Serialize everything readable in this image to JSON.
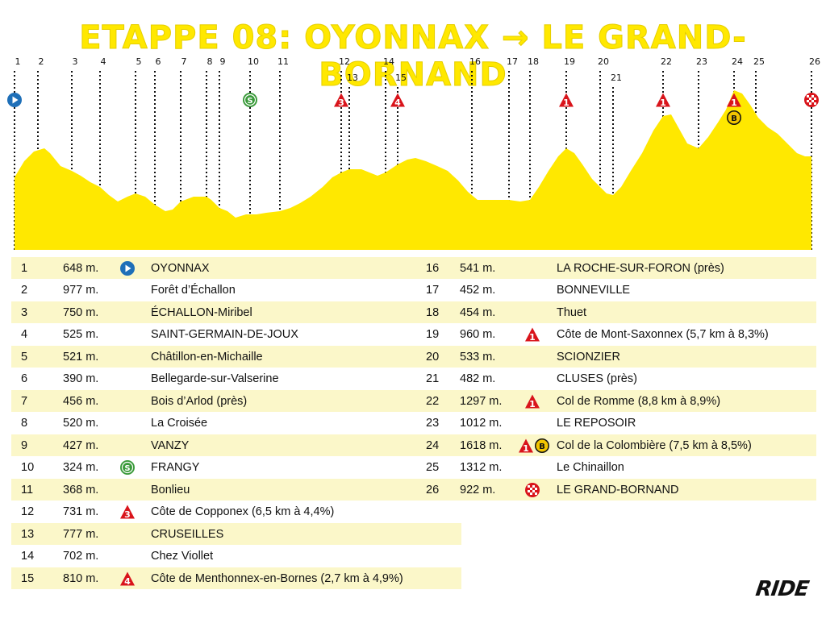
{
  "title": "ETAPPE 08: OYONNAX → LE GRAND-BORNAND",
  "logo": "RIDE",
  "colors": {
    "profile_fill": "#ffe800",
    "title": "#ffe800",
    "row_shade": "#fbf7c9",
    "start": "#1e6fb8",
    "sprint": "#3a9a3a",
    "climb": "#d9141b",
    "bonus": "#f2c500"
  },
  "waypoints": [
    {
      "num": "1",
      "alt": "648 m.",
      "icon": "start-icon",
      "name": "OYONNAX"
    },
    {
      "num": "2",
      "alt": "977 m.",
      "icon": "",
      "name": "Forêt d’Échallon"
    },
    {
      "num": "3",
      "alt": "750 m.",
      "icon": "",
      "name": "ÉCHALLON-Miribel"
    },
    {
      "num": "4",
      "alt": "525 m.",
      "icon": "",
      "name": "SAINT-GERMAIN-DE-JOUX"
    },
    {
      "num": "5",
      "alt": "521 m.",
      "icon": "",
      "name": "Châtillon-en-Michaille"
    },
    {
      "num": "6",
      "alt": "390 m.",
      "icon": "",
      "name": "Bellegarde-sur-Valserine"
    },
    {
      "num": "7",
      "alt": "456 m.",
      "icon": "",
      "name": "Bois d’Arlod (près)"
    },
    {
      "num": "8",
      "alt": "520 m.",
      "icon": "",
      "name": "La Croisée"
    },
    {
      "num": "9",
      "alt": "427 m.",
      "icon": "",
      "name": "VANZY"
    },
    {
      "num": "10",
      "alt": "324 m.",
      "icon": "sprint-icon",
      "name": "FRANGY"
    },
    {
      "num": "11",
      "alt": "368 m.",
      "icon": "",
      "name": "Bonlieu"
    },
    {
      "num": "12",
      "alt": "731 m.",
      "icon": "climb-cat3-icon",
      "name": "Côte de Copponex (6,5 km à 4,4%)"
    },
    {
      "num": "13",
      "alt": "777 m.",
      "icon": "",
      "name": "CRUSEILLES"
    },
    {
      "num": "14",
      "alt": "702 m.",
      "icon": "",
      "name": "Chez Viollet"
    },
    {
      "num": "15",
      "alt": "810 m.",
      "icon": "climb-cat4-icon",
      "name": "Côte de Menthonnex-en-Bornes (2,7 km à 4,9%)"
    },
    {
      "num": "16",
      "alt": "541 m.",
      "icon": "",
      "name": "LA ROCHE-SUR-FORON (près)"
    },
    {
      "num": "17",
      "alt": "452 m.",
      "icon": "",
      "name": "BONNEVILLE"
    },
    {
      "num": "18",
      "alt": "454 m.",
      "icon": "",
      "name": "Thuet"
    },
    {
      "num": "19",
      "alt": "960 m.",
      "icon": "climb-cat1-icon",
      "name": "Côte de Mont-Saxonnex (5,7 km à 8,3%)"
    },
    {
      "num": "20",
      "alt": "533 m.",
      "icon": "",
      "name": "SCIONZIER"
    },
    {
      "num": "21",
      "alt": "482 m.",
      "icon": "",
      "name": "CLUSES (près)"
    },
    {
      "num": "22",
      "alt": "1297 m.",
      "icon": "climb-cat1-icon",
      "name": "Col de Romme (8,8 km à 8,9%)"
    },
    {
      "num": "23",
      "alt": "1012 m.",
      "icon": "",
      "name": "LE REPOSOIR"
    },
    {
      "num": "24",
      "alt": "1618 m.",
      "icon": "climb-cat1-bonus-icon",
      "name": "Col de la Colombière (7,5 km à 8,5%)"
    },
    {
      "num": "25",
      "alt": "1312 m.",
      "icon": "",
      "name": "Le Chinaillon"
    },
    {
      "num": "26",
      "alt": "922 m.",
      "icon": "finish-icon",
      "name": "LE GRAND-BORNAND"
    }
  ],
  "markers": [
    {
      "num": "1",
      "icon": "start-icon"
    },
    {
      "num": "2",
      "icon": ""
    },
    {
      "num": "3",
      "icon": ""
    },
    {
      "num": "4",
      "icon": ""
    },
    {
      "num": "5",
      "icon": ""
    },
    {
      "num": "6",
      "icon": ""
    },
    {
      "num": "7",
      "icon": ""
    },
    {
      "num": "8",
      "icon": ""
    },
    {
      "num": "9",
      "icon": ""
    },
    {
      "num": "10",
      "icon": "sprint-icon"
    },
    {
      "num": "11",
      "icon": ""
    },
    {
      "num": "12",
      "icon": "climb-cat3-icon"
    },
    {
      "num": "13",
      "icon": ""
    },
    {
      "num": "14",
      "icon": ""
    },
    {
      "num": "15",
      "icon": "climb-cat4-icon"
    },
    {
      "num": "16",
      "icon": ""
    },
    {
      "num": "17",
      "icon": ""
    },
    {
      "num": "18",
      "icon": ""
    },
    {
      "num": "19",
      "icon": "climb-cat1-icon"
    },
    {
      "num": "20",
      "icon": ""
    },
    {
      "num": "21",
      "icon": ""
    },
    {
      "num": "22",
      "icon": "climb-cat1-icon"
    },
    {
      "num": "23",
      "icon": ""
    },
    {
      "num": "24",
      "icon": "climb-cat1-bonus-icon"
    },
    {
      "num": "25",
      "icon": ""
    },
    {
      "num": "26",
      "icon": "finish-icon"
    }
  ]
}
